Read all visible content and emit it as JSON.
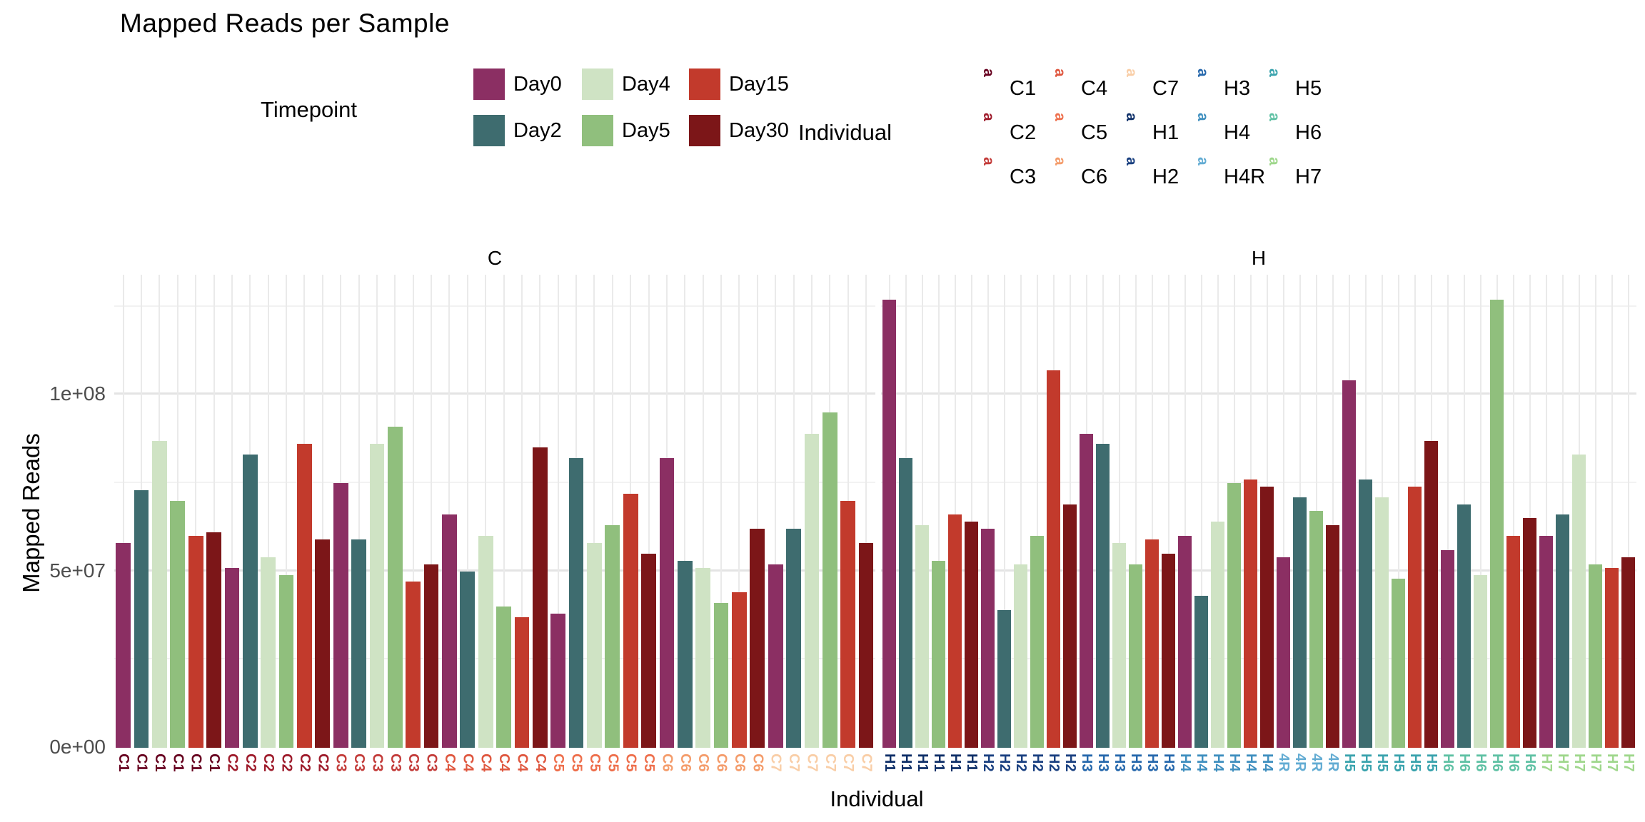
{
  "title": "Mapped Reads per Sample",
  "legend_timepoint": {
    "title": "Timepoint",
    "items": [
      {
        "label": "Day0",
        "color": "#8B2F63"
      },
      {
        "label": "Day2",
        "color": "#3E6C6F"
      },
      {
        "label": "Day4",
        "color": "#CFE3C4"
      },
      {
        "label": "Day5",
        "color": "#90BF7D"
      },
      {
        "label": "Day15",
        "color": "#C23A2C"
      },
      {
        "label": "Day30",
        "color": "#7C1618"
      }
    ]
  },
  "legend_individual": {
    "title": "Individual",
    "key_glyph": "a",
    "items": [
      {
        "label": "C1",
        "color": "#67001F"
      },
      {
        "label": "C2",
        "color": "#9E1B2B"
      },
      {
        "label": "C3",
        "color": "#C33C3A"
      },
      {
        "label": "C4",
        "color": "#DF573F"
      },
      {
        "label": "C5",
        "color": "#EE6F4C"
      },
      {
        "label": "C6",
        "color": "#F49C6B"
      },
      {
        "label": "C7",
        "color": "#F9CEA7"
      },
      {
        "label": "H1",
        "color": "#0E2F68"
      },
      {
        "label": "H2",
        "color": "#1A4080"
      },
      {
        "label": "H3",
        "color": "#2668AC"
      },
      {
        "label": "H4",
        "color": "#3F8FBF"
      },
      {
        "label": "H4R",
        "color": "#63ACD3"
      },
      {
        "label": "H5",
        "color": "#3AA3AD"
      },
      {
        "label": "H6",
        "color": "#5FC1A4"
      },
      {
        "label": "H7",
        "color": "#9FD78C"
      }
    ]
  },
  "chart_data": {
    "type": "bar",
    "title": "Mapped Reads per Sample",
    "xlabel": "Individual",
    "ylabel": "Mapped Reads",
    "ylim": [
      0,
      134000000
    ],
    "grid": "on",
    "legend_position": "top",
    "yticks": [
      {
        "label": "0e+00",
        "value": 0
      },
      {
        "label": "5e+07",
        "value": 50000000
      },
      {
        "label": "1e+08",
        "value": 100000000
      }
    ],
    "gridline_values": {
      "major": [
        50000000,
        100000000
      ],
      "minor": [
        25000000,
        75000000,
        125000000
      ]
    },
    "timepoints": [
      "Day0",
      "Day2",
      "Day4",
      "Day5",
      "Day15",
      "Day30"
    ],
    "timepoint_colors": {
      "Day0": "#8B2F63",
      "Day2": "#3E6C6F",
      "Day4": "#CFE3C4",
      "Day5": "#90BF7D",
      "Day15": "#C23A2C",
      "Day30": "#7C1618"
    },
    "facets": [
      {
        "label": "C",
        "groups": [
          {
            "individual": "C1",
            "tick_text": "C1",
            "tick_color": "#67001F",
            "samples": [
              {
                "timepoint": "Day0",
                "value": 58000000
              },
              {
                "timepoint": "Day2",
                "value": 73000000
              },
              {
                "timepoint": "Day4",
                "value": 87000000
              },
              {
                "timepoint": "Day5",
                "value": 70000000
              },
              {
                "timepoint": "Day15",
                "value": 60000000
              },
              {
                "timepoint": "Day30",
                "value": 61000000
              }
            ]
          },
          {
            "individual": "C2",
            "tick_text": "C2",
            "tick_color": "#9E1B2B",
            "samples": [
              {
                "timepoint": "Day0",
                "value": 51000000
              },
              {
                "timepoint": "Day2",
                "value": 83000000
              },
              {
                "timepoint": "Day4",
                "value": 54000000
              },
              {
                "timepoint": "Day5",
                "value": 49000000
              },
              {
                "timepoint": "Day15",
                "value": 86000000
              },
              {
                "timepoint": "Day30",
                "value": 59000000
              }
            ]
          },
          {
            "individual": "C3",
            "tick_text": "C3",
            "tick_color": "#C33C3A",
            "samples": [
              {
                "timepoint": "Day0",
                "value": 75000000
              },
              {
                "timepoint": "Day2",
                "value": 59000000
              },
              {
                "timepoint": "Day4",
                "value": 86000000
              },
              {
                "timepoint": "Day5",
                "value": 91000000
              },
              {
                "timepoint": "Day15",
                "value": 47000000
              },
              {
                "timepoint": "Day30",
                "value": 52000000
              }
            ]
          },
          {
            "individual": "C4",
            "tick_text": "C4",
            "tick_color": "#DF573F",
            "samples": [
              {
                "timepoint": "Day0",
                "value": 66000000
              },
              {
                "timepoint": "Day2",
                "value": 50000000
              },
              {
                "timepoint": "Day4",
                "value": 60000000
              },
              {
                "timepoint": "Day5",
                "value": 40000000
              },
              {
                "timepoint": "Day15",
                "value": 37000000
              },
              {
                "timepoint": "Day30",
                "value": 85000000
              }
            ]
          },
          {
            "individual": "C5",
            "tick_text": "C5",
            "tick_color": "#EE6F4C",
            "samples": [
              {
                "timepoint": "Day0",
                "value": 38000000
              },
              {
                "timepoint": "Day2",
                "value": 82000000
              },
              {
                "timepoint": "Day4",
                "value": 58000000
              },
              {
                "timepoint": "Day5",
                "value": 63000000
              },
              {
                "timepoint": "Day15",
                "value": 72000000
              },
              {
                "timepoint": "Day30",
                "value": 55000000
              }
            ]
          },
          {
            "individual": "C6",
            "tick_text": "C6",
            "tick_color": "#F49C6B",
            "samples": [
              {
                "timepoint": "Day0",
                "value": 82000000
              },
              {
                "timepoint": "Day2",
                "value": 53000000
              },
              {
                "timepoint": "Day4",
                "value": 51000000
              },
              {
                "timepoint": "Day5",
                "value": 41000000
              },
              {
                "timepoint": "Day15",
                "value": 44000000
              },
              {
                "timepoint": "Day30",
                "value": 62000000
              }
            ]
          },
          {
            "individual": "C7",
            "tick_text": "C7",
            "tick_color": "#F9CEA7",
            "samples": [
              {
                "timepoint": "Day0",
                "value": 52000000
              },
              {
                "timepoint": "Day2",
                "value": 62000000
              },
              {
                "timepoint": "Day4",
                "value": 89000000
              },
              {
                "timepoint": "Day5",
                "value": 95000000
              },
              {
                "timepoint": "Day15",
                "value": 70000000
              },
              {
                "timepoint": "Day30",
                "value": 58000000
              }
            ]
          }
        ]
      },
      {
        "label": "H",
        "groups": [
          {
            "individual": "H1",
            "tick_text": "H1",
            "tick_color": "#0E2F68",
            "samples": [
              {
                "timepoint": "Day0",
                "value": 127000000
              },
              {
                "timepoint": "Day2",
                "value": 82000000
              },
              {
                "timepoint": "Day4",
                "value": 63000000
              },
              {
                "timepoint": "Day5",
                "value": 53000000
              },
              {
                "timepoint": "Day15",
                "value": 66000000
              },
              {
                "timepoint": "Day30",
                "value": 64000000
              }
            ]
          },
          {
            "individual": "H2",
            "tick_text": "H2",
            "tick_color": "#1A4080",
            "samples": [
              {
                "timepoint": "Day0",
                "value": 62000000
              },
              {
                "timepoint": "Day2",
                "value": 39000000
              },
              {
                "timepoint": "Day4",
                "value": 52000000
              },
              {
                "timepoint": "Day5",
                "value": 60000000
              },
              {
                "timepoint": "Day15",
                "value": 107000000
              },
              {
                "timepoint": "Day30",
                "value": 69000000
              }
            ]
          },
          {
            "individual": "H3",
            "tick_text": "H3",
            "tick_color": "#2668AC",
            "samples": [
              {
                "timepoint": "Day0",
                "value": 89000000
              },
              {
                "timepoint": "Day2",
                "value": 86000000
              },
              {
                "timepoint": "Day4",
                "value": 58000000
              },
              {
                "timepoint": "Day5",
                "value": 52000000
              },
              {
                "timepoint": "Day15",
                "value": 59000000
              },
              {
                "timepoint": "Day30",
                "value": 55000000
              }
            ]
          },
          {
            "individual": "H4",
            "tick_text": "H4",
            "tick_color": "#3F8FBF",
            "samples": [
              {
                "timepoint": "Day0",
                "value": 60000000
              },
              {
                "timepoint": "Day2",
                "value": 43000000
              },
              {
                "timepoint": "Day4",
                "value": 64000000
              },
              {
                "timepoint": "Day5",
                "value": 75000000
              },
              {
                "timepoint": "Day15",
                "value": 76000000
              },
              {
                "timepoint": "Day30",
                "value": 74000000
              }
            ]
          },
          {
            "individual": "H4R",
            "tick_text": "4R",
            "tick_color": "#63ACD3",
            "samples": [
              {
                "timepoint": "Day0",
                "value": 54000000
              },
              {
                "timepoint": "Day2",
                "value": 71000000
              },
              {
                "timepoint": "Day5",
                "value": 67000000
              },
              {
                "timepoint": "Day30",
                "value": 63000000
              }
            ]
          },
          {
            "individual": "H5",
            "tick_text": "H5",
            "tick_color": "#3AA3AD",
            "samples": [
              {
                "timepoint": "Day0",
                "value": 104000000
              },
              {
                "timepoint": "Day2",
                "value": 76000000
              },
              {
                "timepoint": "Day4",
                "value": 71000000
              },
              {
                "timepoint": "Day5",
                "value": 48000000
              },
              {
                "timepoint": "Day15",
                "value": 74000000
              },
              {
                "timepoint": "Day30",
                "value": 87000000
              }
            ]
          },
          {
            "individual": "H6",
            "tick_text": "H6",
            "tick_color": "#5FC1A4",
            "samples": [
              {
                "timepoint": "Day0",
                "value": 56000000
              },
              {
                "timepoint": "Day2",
                "value": 69000000
              },
              {
                "timepoint": "Day4",
                "value": 49000000
              },
              {
                "timepoint": "Day5",
                "value": 127000000
              },
              {
                "timepoint": "Day15",
                "value": 60000000
              },
              {
                "timepoint": "Day30",
                "value": 65000000
              }
            ]
          },
          {
            "individual": "H7",
            "tick_text": "H7",
            "tick_color": "#9FD78C",
            "samples": [
              {
                "timepoint": "Day0",
                "value": 60000000
              },
              {
                "timepoint": "Day2",
                "value": 66000000
              },
              {
                "timepoint": "Day4",
                "value": 83000000
              },
              {
                "timepoint": "Day5",
                "value": 52000000
              },
              {
                "timepoint": "Day15",
                "value": 51000000
              },
              {
                "timepoint": "Day30",
                "value": 54000000
              }
            ]
          }
        ]
      }
    ]
  }
}
